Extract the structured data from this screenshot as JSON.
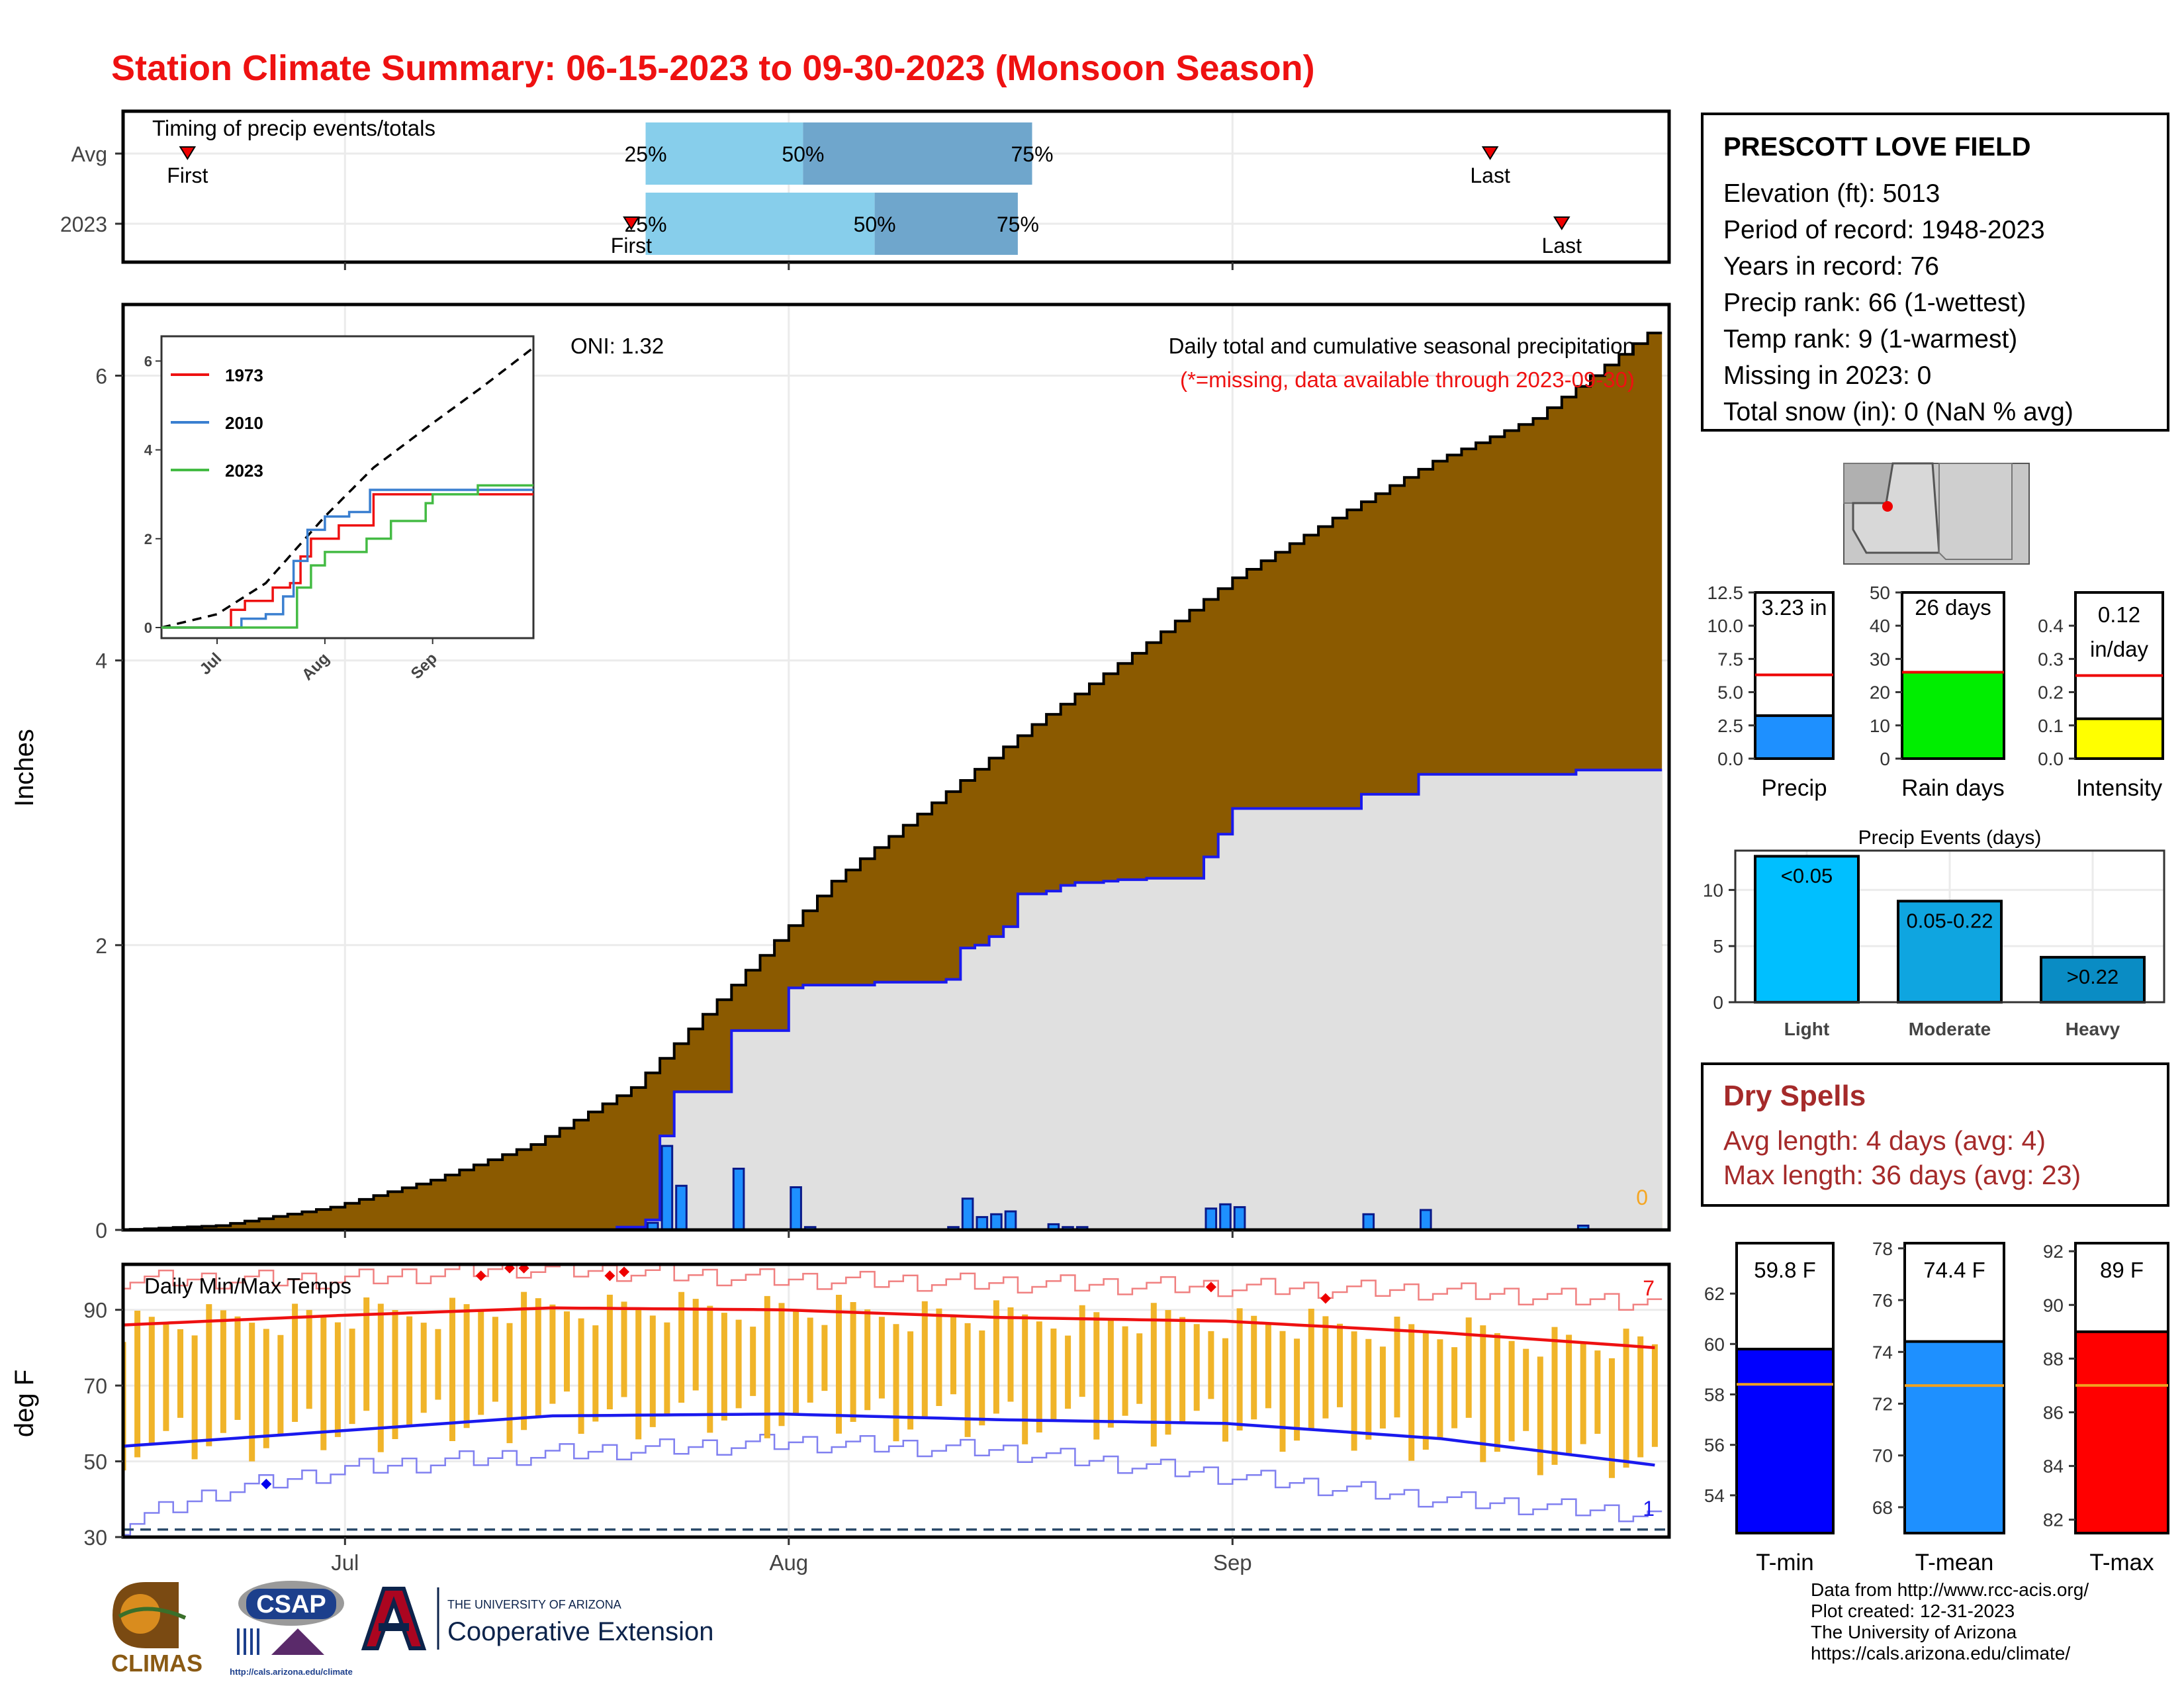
{
  "title": "Station Climate Summary: 06-15-2023 to 09-30-2023 (Monsoon Season)",
  "station": {
    "name": "PRESCOTT LOVE FIELD",
    "lines": [
      "Elevation (ft): 5013",
      "Period of record: 1948-2023",
      "Years in record: 76",
      "Precip rank: 66 (1-wettest)",
      "Temp rank: 9 (1-warmest)",
      "Missing in 2023: 0",
      "Total snow (in): 0 (NaN % avg)"
    ]
  },
  "dry_spells": {
    "title": "Dry Spells",
    "avg_length": "Avg length: 4 days (avg: 4)",
    "max_length": "Max length: 36 days (avg: 23)"
  },
  "credits": [
    "Data from http://www.rcc-acis.org/",
    "Plot created: 12-31-2023",
    "The University of Arizona",
    "https://cals.arizona.edu/climate/"
  ],
  "logos": {
    "climas": "CLIMAS",
    "csap": "CSAP",
    "csap_url": "http://cals.arizona.edu/climate",
    "ua_top": "THE UNIVERSITY OF ARIZONA",
    "ua_bottom": "Cooperative Extension"
  },
  "colors": {
    "title": "#ee1111",
    "brown": "#8b5a00",
    "gray_fill": "#e0e0e0",
    "blue_line": "#1a1aee",
    "daily_bar": "#1e90ff",
    "temp_bar": "#f0b429",
    "tmax_avg": "#ee1111",
    "tmin_avg": "#1a1aee"
  },
  "chart_data": [
    {
      "id": "timing",
      "type": "bar",
      "title": "Timing of precip events/totals",
      "categories": [
        "Avg",
        "2023"
      ],
      "x_ticks": [
        "Jul",
        "Aug",
        "Sep"
      ],
      "rows": [
        {
          "name": "Avg",
          "first": "2023-06-20",
          "p25": "2023-07-22",
          "p50": "2023-08-02",
          "p75": "2023-08-18",
          "last": "2023-09-19"
        },
        {
          "name": "2023",
          "first": "2023-07-21",
          "p25": "2023-07-22",
          "p50": "2023-08-07",
          "p75": "2023-08-17",
          "last": "2023-09-24"
        }
      ],
      "labels": {
        "first": "First",
        "last": "Last",
        "p25": "25%",
        "p50": "50%",
        "p75": "75%"
      }
    },
    {
      "id": "precip",
      "type": "area",
      "title": "Daily total and cumulative seasonal precipitation",
      "subtitle": "(*=missing, data available through 2023-09-30)",
      "annotation_left": "ONI: 1.32",
      "corner_count": "0",
      "ylabel": "Inches",
      "ylim": [
        0,
        6.5
      ],
      "y_ticks": [
        0,
        2,
        4,
        6
      ],
      "x_ticks": [
        "Jul",
        "Aug",
        "Sep"
      ],
      "avg_cumulative": [
        [
          "2023-06-15",
          0.0
        ],
        [
          "2023-06-22",
          0.03
        ],
        [
          "2023-06-30",
          0.16
        ],
        [
          "2023-07-07",
          0.35
        ],
        [
          "2023-07-14",
          0.6
        ],
        [
          "2023-07-21",
          1.0
        ],
        [
          "2023-07-28",
          1.72
        ],
        [
          "2023-08-04",
          2.45
        ],
        [
          "2023-08-11",
          3.0
        ],
        [
          "2023-08-18",
          3.55
        ],
        [
          "2023-08-25",
          4.05
        ],
        [
          "2023-09-01",
          4.58
        ],
        [
          "2023-09-08",
          5.0
        ],
        [
          "2023-09-15",
          5.4
        ],
        [
          "2023-09-22",
          5.7
        ],
        [
          "2023-09-30",
          6.3
        ]
      ],
      "cumulative_2023": [
        [
          "2023-06-15",
          0.0
        ],
        [
          "2023-07-20",
          0.02
        ],
        [
          "2023-07-22",
          0.07
        ],
        [
          "2023-07-23",
          0.66
        ],
        [
          "2023-07-24",
          0.97
        ],
        [
          "2023-07-27",
          0.97
        ],
        [
          "2023-07-28",
          1.4
        ],
        [
          "2023-07-31",
          1.4
        ],
        [
          "2023-08-01",
          1.7
        ],
        [
          "2023-08-02",
          1.72
        ],
        [
          "2023-08-07",
          1.74
        ],
        [
          "2023-08-11",
          1.74
        ],
        [
          "2023-08-12",
          1.76
        ],
        [
          "2023-08-13",
          1.98
        ],
        [
          "2023-08-14",
          2.0
        ],
        [
          "2023-08-15",
          2.06
        ],
        [
          "2023-08-16",
          2.13
        ],
        [
          "2023-08-17",
          2.36
        ],
        [
          "2023-08-19",
          2.38
        ],
        [
          "2023-08-20",
          2.42
        ],
        [
          "2023-08-21",
          2.44
        ],
        [
          "2023-08-23",
          2.45
        ],
        [
          "2023-08-24",
          2.46
        ],
        [
          "2023-08-26",
          2.47
        ],
        [
          "2023-08-29",
          2.47
        ],
        [
          "2023-08-30",
          2.62
        ],
        [
          "2023-08-31",
          2.78
        ],
        [
          "2023-09-01",
          2.96
        ],
        [
          "2023-09-09",
          2.96
        ],
        [
          "2023-09-10",
          3.06
        ],
        [
          "2023-09-13",
          3.06
        ],
        [
          "2023-09-14",
          3.2
        ],
        [
          "2023-09-24",
          3.2
        ],
        [
          "2023-09-25",
          3.23
        ],
        [
          "2023-09-30",
          3.23
        ]
      ],
      "daily_2023": [
        [
          "2023-07-22",
          0.05
        ],
        [
          "2023-07-23",
          0.59
        ],
        [
          "2023-07-24",
          0.31
        ],
        [
          "2023-07-28",
          0.43
        ],
        [
          "2023-08-01",
          0.3
        ],
        [
          "2023-08-02",
          0.02
        ],
        [
          "2023-08-12",
          0.02
        ],
        [
          "2023-08-13",
          0.22
        ],
        [
          "2023-08-14",
          0.09
        ],
        [
          "2023-08-15",
          0.11
        ],
        [
          "2023-08-16",
          0.13
        ],
        [
          "2023-08-19",
          0.04
        ],
        [
          "2023-08-20",
          0.02
        ],
        [
          "2023-08-21",
          0.02
        ],
        [
          "2023-08-30",
          0.15
        ],
        [
          "2023-08-31",
          0.18
        ],
        [
          "2023-09-01",
          0.16
        ],
        [
          "2023-09-10",
          0.11
        ],
        [
          "2023-09-14",
          0.14
        ],
        [
          "2023-09-25",
          0.03
        ]
      ]
    },
    {
      "id": "inset",
      "type": "line",
      "ylim": [
        0,
        6.2
      ],
      "y_ticks": [
        0,
        2,
        4,
        6
      ],
      "x_ticks": [
        "Jul",
        "Aug",
        "Sep"
      ],
      "series": [
        {
          "name": "1973",
          "color": "#ee1111",
          "points": [
            [
              "2023-07-03",
              0
            ],
            [
              "2023-07-05",
              0.4
            ],
            [
              "2023-07-09",
              0.6
            ],
            [
              "2023-07-14",
              0.6
            ],
            [
              "2023-07-17",
              0.9
            ],
            [
              "2023-07-22",
              1.0
            ],
            [
              "2023-07-25",
              1.6
            ],
            [
              "2023-07-28",
              2.0
            ],
            [
              "2023-08-05",
              2.3
            ],
            [
              "2023-08-15",
              3.0
            ],
            [
              "2023-09-30",
              3.0
            ]
          ]
        },
        {
          "name": "2010",
          "color": "#3a7fd0",
          "points": [
            [
              "2023-07-05",
              0
            ],
            [
              "2023-07-08",
              0.2
            ],
            [
              "2023-07-15",
              0.3
            ],
            [
              "2023-07-20",
              0.7
            ],
            [
              "2023-07-23",
              1.5
            ],
            [
              "2023-07-27",
              2.2
            ],
            [
              "2023-08-01",
              2.5
            ],
            [
              "2023-08-08",
              2.6
            ],
            [
              "2023-08-14",
              3.1
            ],
            [
              "2023-09-30",
              3.1
            ]
          ]
        },
        {
          "name": "2023",
          "color": "#44bb44",
          "points": [
            [
              "2023-07-20",
              0
            ],
            [
              "2023-07-24",
              0.9
            ],
            [
              "2023-07-28",
              1.4
            ],
            [
              "2023-08-01",
              1.7
            ],
            [
              "2023-08-13",
              2.0
            ],
            [
              "2023-08-20",
              2.4
            ],
            [
              "2023-08-30",
              2.8
            ],
            [
              "2023-09-01",
              3.0
            ],
            [
              "2023-09-14",
              3.2
            ],
            [
              "2023-09-30",
              3.23
            ]
          ]
        }
      ],
      "avg_points": [
        [
          "2023-06-15",
          0
        ],
        [
          "2023-07-01",
          0.3
        ],
        [
          "2023-07-15",
          1.0
        ],
        [
          "2023-08-01",
          2.5
        ],
        [
          "2023-08-15",
          3.6
        ],
        [
          "2023-09-01",
          4.6
        ],
        [
          "2023-09-15",
          5.4
        ],
        [
          "2023-09-30",
          6.3
        ]
      ]
    },
    {
      "id": "temps",
      "type": "bar",
      "title": "Daily Min/Max Temps",
      "ylabel": "deg F",
      "ylim": [
        30,
        102
      ],
      "y_ticks": [
        30,
        50,
        70,
        90
      ],
      "x_ticks": [
        "Jul",
        "Aug",
        "Sep"
      ],
      "count_high": "7",
      "count_low": "1",
      "freeze_line": 32,
      "tmax_avg_points": [
        [
          "2023-06-15",
          86
        ],
        [
          "2023-06-30",
          88.5
        ],
        [
          "2023-07-15",
          90.5
        ],
        [
          "2023-07-31",
          90
        ],
        [
          "2023-08-15",
          88
        ],
        [
          "2023-08-31",
          87
        ],
        [
          "2023-09-15",
          84
        ],
        [
          "2023-09-30",
          80
        ]
      ],
      "tmin_avg_points": [
        [
          "2023-06-15",
          54
        ],
        [
          "2023-06-30",
          58
        ],
        [
          "2023-07-15",
          62
        ],
        [
          "2023-07-31",
          62.5
        ],
        [
          "2023-08-15",
          61
        ],
        [
          "2023-08-31",
          60
        ],
        [
          "2023-09-15",
          56
        ],
        [
          "2023-09-30",
          49
        ]
      ],
      "record_high_points": [
        [
          "2023-06-15",
          98
        ],
        [
          "2023-07-01",
          98
        ],
        [
          "2023-07-12",
          101
        ],
        [
          "2023-07-20",
          100
        ],
        [
          "2023-08-01",
          98
        ],
        [
          "2023-08-31",
          96
        ],
        [
          "2023-09-15",
          95
        ],
        [
          "2023-09-30",
          92
        ]
      ],
      "record_low_points": [
        [
          "2023-06-15",
          33
        ],
        [
          "2023-06-22",
          42
        ],
        [
          "2023-07-01",
          48
        ],
        [
          "2023-07-15",
          52
        ],
        [
          "2023-08-01",
          55
        ],
        [
          "2023-08-15",
          53
        ],
        [
          "2023-09-01",
          46
        ],
        [
          "2023-09-15",
          40
        ],
        [
          "2023-09-30",
          36
        ]
      ],
      "record_high_markers": [
        [
          "2023-07-10",
          99
        ],
        [
          "2023-07-12",
          101
        ],
        [
          "2023-07-13",
          101
        ],
        [
          "2023-07-19",
          99
        ],
        [
          "2023-07-20",
          100
        ],
        [
          "2023-08-30",
          96
        ],
        [
          "2023-09-07",
          93
        ]
      ],
      "record_low_markers": [
        [
          "2023-06-25",
          44
        ]
      ]
    },
    {
      "id": "precip_total",
      "type": "bar",
      "categories": [
        "Precip"
      ],
      "values": [
        3.23
      ],
      "average": 6.3,
      "ylim": [
        0,
        12.5
      ],
      "y_ticks": [
        0,
        2.5,
        5,
        7.5,
        10,
        12.5
      ],
      "label": "3.23 in",
      "color": "#1e90ff"
    },
    {
      "id": "rain_days",
      "type": "bar",
      "categories": [
        "Rain days"
      ],
      "values": [
        26
      ],
      "average": 26,
      "ylim": [
        0,
        50
      ],
      "y_ticks": [
        0,
        10,
        20,
        30,
        40,
        50
      ],
      "label": "26 days",
      "color": "#00ee00"
    },
    {
      "id": "intensity",
      "type": "bar",
      "categories": [
        "Intensity"
      ],
      "values": [
        0.12
      ],
      "average": 0.25,
      "ylim": [
        0,
        0.5
      ],
      "y_ticks": [
        0,
        0.1,
        0.2,
        0.3,
        0.4
      ],
      "label": "0.12",
      "label2": "in/day",
      "color": "#ffff00"
    },
    {
      "id": "precip_events",
      "type": "bar",
      "title": "Precip Events (days)",
      "categories": [
        "Light",
        "Moderate",
        "Heavy"
      ],
      "bar_labels": [
        "<0.05",
        "0.05-0.22",
        ">0.22"
      ],
      "values": [
        13,
        9,
        4
      ],
      "ylim": [
        0,
        13.5
      ],
      "y_ticks": [
        0,
        5,
        10
      ],
      "colors": [
        "#00bfff",
        "#0fa5e0",
        "#0a8cc4"
      ]
    },
    {
      "id": "tmin",
      "type": "bar",
      "categories": [
        "T-min"
      ],
      "values": [
        59.8
      ],
      "average": 58.4,
      "ylim": [
        52.5,
        64
      ],
      "y_ticks": [
        54,
        56,
        58,
        60,
        62
      ],
      "label": "59.8 F",
      "color": "#0000ff"
    },
    {
      "id": "tmean",
      "type": "bar",
      "categories": [
        "T-mean"
      ],
      "values": [
        74.4
      ],
      "average": 72.7,
      "ylim": [
        67,
        78.2
      ],
      "y_ticks": [
        68,
        70,
        72,
        74,
        76,
        78
      ],
      "label": "74.4 F",
      "color": "#1e90ff"
    },
    {
      "id": "tmax",
      "type": "bar",
      "categories": [
        "T-max"
      ],
      "values": [
        89
      ],
      "average": 87,
      "ylim": [
        81.5,
        92.3
      ],
      "y_ticks": [
        82,
        84,
        86,
        88,
        90,
        92
      ],
      "label": "89 F",
      "color": "#ff0000"
    }
  ]
}
